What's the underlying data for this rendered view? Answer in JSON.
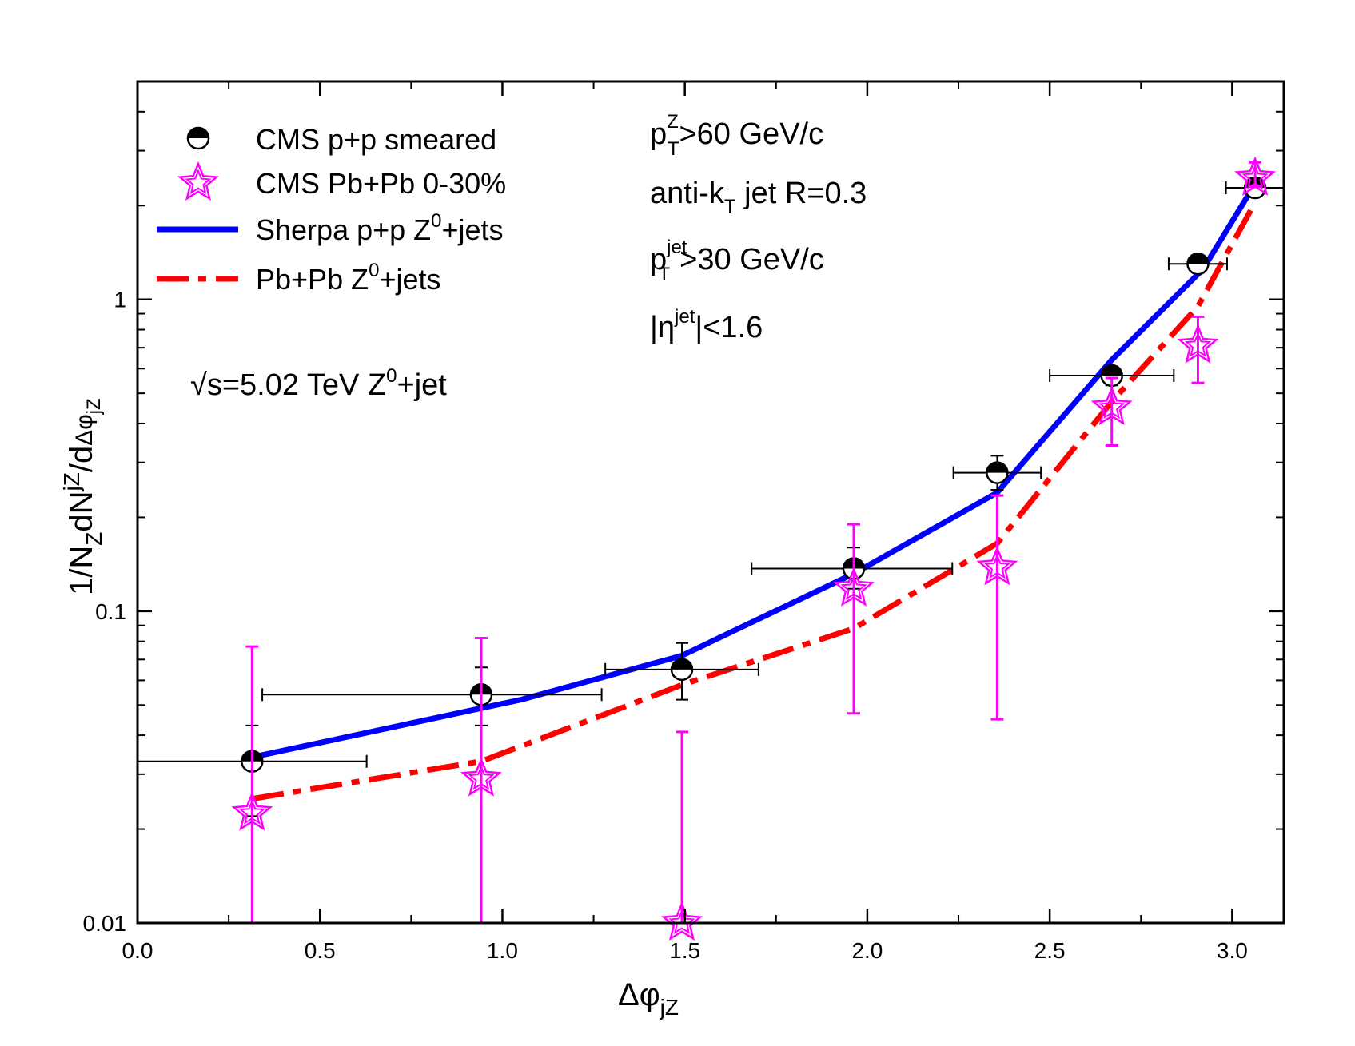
{
  "chart_data": {
    "type": "scatter",
    "title": "",
    "xlabel": {
      "main": "Δφ",
      "sub": "jZ"
    },
    "ylabel": {
      "prefix": "1/N",
      "sub1": "Z",
      "mid": "dN",
      "sup1": "jZ",
      "slash": "/d",
      "phi": "Δφ",
      "sub2": "jZ"
    },
    "xlim": [
      0,
      3.1416
    ],
    "ylim": [
      0.01,
      5
    ],
    "yscale": "log",
    "x_ticks": [
      0.0,
      0.5,
      1.0,
      1.5,
      2.0,
      2.5,
      3.0
    ],
    "x_tick_labels": [
      "0.0",
      "0.5",
      "1.0",
      "1.5",
      "2.0",
      "2.5",
      "3.0"
    ],
    "y_ticks": [
      0.01,
      0.1,
      1
    ],
    "y_tick_labels": [
      "0.01",
      "0.1",
      "1"
    ],
    "series": [
      {
        "name": "CMS p+p smeared",
        "kind": "points",
        "marker": "half-filled-circle",
        "color": "#000000",
        "points": [
          {
            "x": 0.314,
            "y": 0.033,
            "xerr": [
              0.314,
              0.314
            ],
            "yerr": [
              0.022,
              0.043
            ]
          },
          {
            "x": 0.942,
            "y": 0.054,
            "xerr": [
              0.6,
              0.33
            ],
            "yerr": [
              0.043,
              0.066
            ]
          },
          {
            "x": 1.492,
            "y": 0.065,
            "xerr": [
              0.21,
              0.21
            ],
            "yerr": [
              0.052,
              0.079
            ]
          },
          {
            "x": 1.963,
            "y": 0.137,
            "xerr": [
              0.28,
              0.27
            ],
            "yerr": [
              0.118,
              0.16
            ]
          },
          {
            "x": 2.356,
            "y": 0.278,
            "xerr": [
              0.12,
              0.12
            ],
            "yerr": [
              0.245,
              0.315
            ]
          },
          {
            "x": 2.67,
            "y": 0.57,
            "xerr": [
              0.17,
              0.17
            ],
            "yerr": [
              0.53,
              0.61
            ]
          },
          {
            "x": 2.906,
            "y": 1.3,
            "xerr": [
              0.08,
              0.08
            ],
            "yerr": [
              1.24,
              1.36
            ]
          },
          {
            "x": 3.063,
            "y": 2.28,
            "xerr": [
              0.08,
              0.08
            ],
            "yerr": [
              2.2,
              2.36
            ]
          }
        ]
      },
      {
        "name": "CMS Pb+Pb 0-30%",
        "kind": "points",
        "marker": "open-star",
        "color": "#ff00ff",
        "points": [
          {
            "x": 0.314,
            "y": 0.0225,
            "yerr": [
              0.01,
              0.077
            ]
          },
          {
            "x": 0.942,
            "y": 0.029,
            "yerr": [
              0.01,
              0.082
            ]
          },
          {
            "x": 1.492,
            "y": 0.01,
            "yerr": [
              0.01,
              0.041
            ]
          },
          {
            "x": 1.963,
            "y": 0.118,
            "yerr": [
              0.047,
              0.19
            ]
          },
          {
            "x": 2.356,
            "y": 0.138,
            "yerr": [
              0.045,
              0.235
            ]
          },
          {
            "x": 2.67,
            "y": 0.45,
            "yerr": [
              0.34,
              0.56
            ]
          },
          {
            "x": 2.906,
            "y": 0.71,
            "yerr": [
              0.54,
              0.88
            ]
          },
          {
            "x": 3.063,
            "y": 2.45,
            "yerr": [
              2.3,
              2.75
            ]
          }
        ]
      },
      {
        "name": "Sherpa p+p Z0+jets",
        "kind": "line",
        "style": "solid",
        "color": "#0000ff",
        "x": [
          0.314,
          1.05,
          1.492,
          1.963,
          2.356,
          2.67,
          2.92,
          3.063
        ],
        "y": [
          0.034,
          0.052,
          0.072,
          0.132,
          0.24,
          0.64,
          1.25,
          2.35
        ]
      },
      {
        "name": "Pb+Pb Z0+jets",
        "kind": "line",
        "style": "dash-dot",
        "color": "#ff0000",
        "x": [
          0.314,
          0.942,
          1.492,
          1.963,
          2.356,
          2.67,
          2.906,
          3.063
        ],
        "y": [
          0.025,
          0.033,
          0.058,
          0.088,
          0.165,
          0.47,
          0.95,
          2.05
        ]
      }
    ],
    "legend": {
      "placement": "top-left",
      "entries": [
        {
          "series": 0,
          "label": "CMS p+p smeared"
        },
        {
          "series": 1,
          "label": "CMS Pb+Pb 0-30%"
        },
        {
          "series": 2,
          "label_main": "Sherpa p+p Z",
          "label_sup": "0",
          "label_tail": "+jets"
        },
        {
          "series": 3,
          "label_main": "Pb+Pb  Z",
          "label_sup": "0",
          "label_tail": "+jets"
        }
      ]
    },
    "annotations": {
      "energy": {
        "root": "√s=5.02 TeV  Z",
        "sup": "0",
        "tail": "+jet"
      },
      "ptZ": {
        "p": "p",
        "sup": "Z",
        "sub": "T",
        "tail": ">60 GeV/c"
      },
      "algo": {
        "main": "anti-k",
        "sub": "T",
        "tail": " jet   R=0.3"
      },
      "ptjet": {
        "p": "p",
        "sup": "jet",
        "sub": "T",
        "tail": ">30 GeV/c"
      },
      "eta": {
        "pre": "|η",
        "sup": "jet",
        "tail": "|<1.6"
      }
    }
  }
}
